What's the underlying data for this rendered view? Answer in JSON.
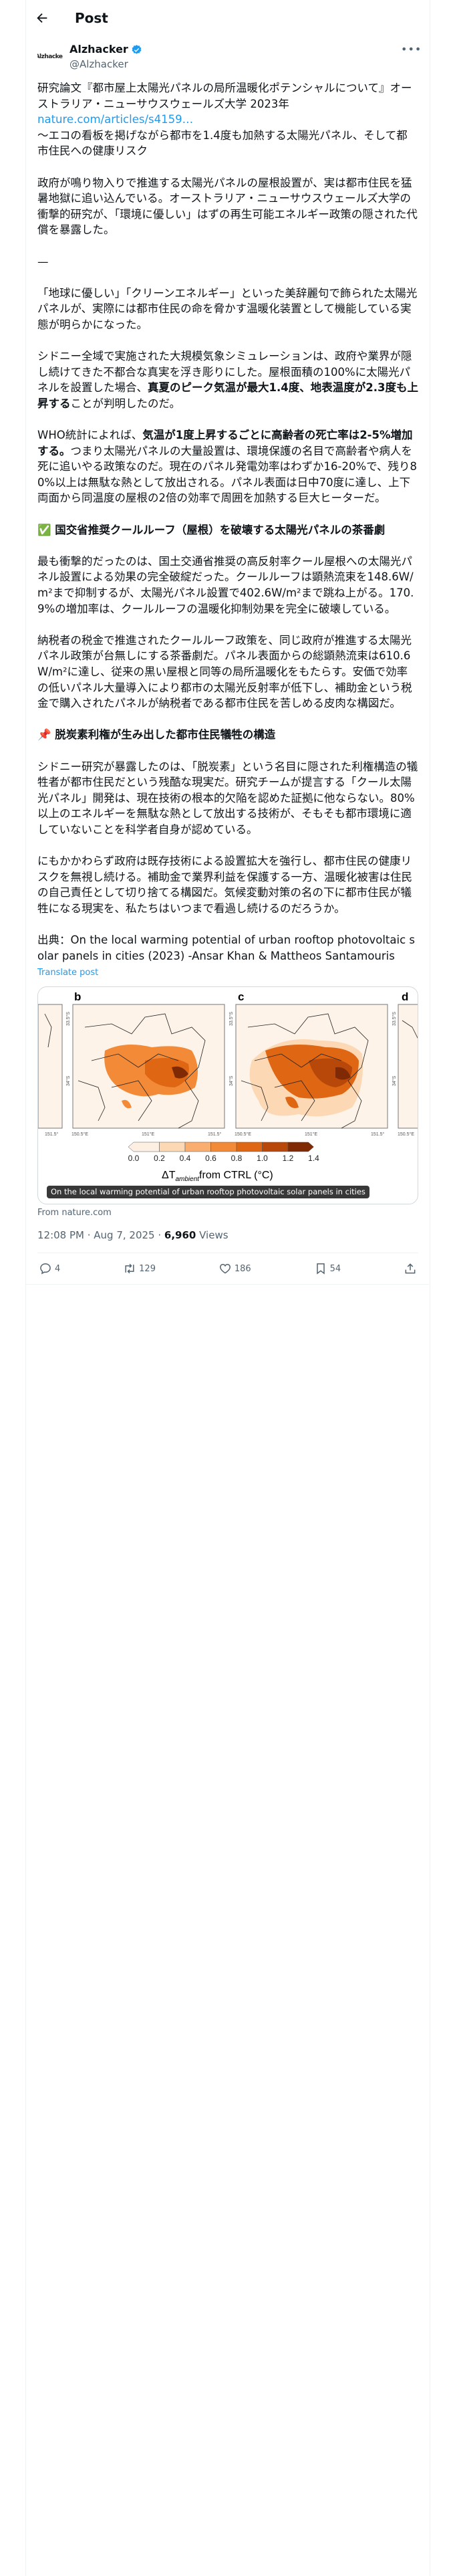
{
  "header": {
    "title": "Post"
  },
  "author": {
    "avatar_text": "Alzhacker",
    "name": "Alzhacker",
    "handle": "@Alzhacker",
    "verified_color": "#1d9bf0"
  },
  "post": {
    "p1": "研究論文『都市屋上太陽光パネルの局所温暖化ポテンシャルについて』オーストラリア・ニューサウスウェールズ大学 2023年",
    "link": "nature.com/articles/s4159…",
    "p1b": "～エコの看板を掲げながら都市を1.4度も加熱する太陽光パネル、そして都市住民への健康リスク",
    "p2": "政府が鳴り物入りで推進する太陽光パネルの屋根設置が、実は都市住民を猛暑地獄に追い込んでいる。オーストラリア・ニューサウスウェールズ大学の衝撃的研究が、「環境に優しい」はずの再生可能エネルギー政策の隠された代償を暴露した。",
    "p3": "—",
    "p4": "「地球に優しい」「クリーンエネルギー」といった美辞麗句で飾られた太陽光パネルが、実際には都市住民の命を脅かす温暖化装置として機能している実態が明らかになった。",
    "p5": [
      "シドニー全域で実施された大規模気象シミュレーションは、政府や業界が隠し続けてきた不都合な真実を浮き彫りにした。屋根面積の100%に太陽光パネルを設置した場合、",
      "真夏のピーク気温が最大1.4度、地表温度が2.3度も上昇する",
      "ことが判明したのだ。"
    ],
    "p6": [
      "WHO統計によれば、",
      "気温が1度上昇するごとに高齢者の死亡率は2-5%増加する。",
      "つまり太陽光パネルの大量設置は、環境保護の名目で高齢者や病人を死に追いやる政策なのだ。現在のパネル発電効率はわずか16-20%で、残り80%以上は無駄な熱として放出される。パネル表面は日中70度に達し、上下両面から同温度の屋根の2倍の効率で周囲を加熱する巨大ヒーターだ。"
    ],
    "h1": {
      "emoji": "✅",
      "text": "国交省推奨クールルーフ（屋根）を破壊する太陽光パネルの茶番劇"
    },
    "p7": "最も衝撃的だったのは、国土交通省推奨の高反射率クール屋根への太陽光パネル設置による効果の完全破綻だった。クールルーフは顕熱流束を148.6W/m²まで抑制するが、太陽光パネル設置で402.6W/m²まで跳ね上がる。170.9%の増加率は、クールルーフの温暖化抑制効果を完全に破壊している。",
    "p8": "納税者の税金で推進されたクールルーフ政策を、同じ政府が推進する太陽光パネル政策が台無しにする茶番劇だ。パネル表面からの総顕熱流束は610.6W/m²に達し、従来の黒い屋根と同等の局所温暖化をもたらす。安価で効率の低いパネル大量導入により都市の太陽光反射率が低下し、補助金という税金で購入されたパネルが納税者である都市住民を苦しめる皮肉な構図だ。",
    "h2": {
      "emoji": "📌",
      "text": "脱炭素利権が生み出した都市住民犠牲の構造"
    },
    "p9": "シドニー研究が暴露したのは、「脱炭素」という名目に隠された利権構造の犠牲者が都市住民だという残酷な現実だ。研究チームが提言する「クール太陽光パネル」開発は、現在技術の根本的欠陥を認めた証拠に他ならない。80%以上のエネルギーを無駄な熱として放出する技術が、そもそも都市環境に適していないことを科学者自身が認めている。",
    "p10": "にもかかわらず政府は既存技術による設置拡大を強行し、都市住民の健康リスクを無視し続ける。補助金で業界利益を保護する一方、温暖化被害は住民の自己責任として切り捨てる構図だ。気候変動対策の名の下に都市住民が犠牲になる現実を、私たちはいつまで看過し続けるのだろうか。",
    "p11": "出典：On the local warming potential of urban rooftop photovoltaic solar panels in cities (2023) -Ansar Khan & Mattheos Santamouris",
    "translate": "Translate post"
  },
  "card": {
    "panel_labels": [
      "b",
      "c",
      "d"
    ],
    "lat_labels": [
      "33.5°S",
      "34°S"
    ],
    "lon_labels": [
      "150.5°E",
      "151°E",
      "151.5°"
    ],
    "colorbar_ticks": [
      "0.0",
      "0.2",
      "0.4",
      "0.6",
      "0.8",
      "1.0",
      "1.2",
      "1.4"
    ],
    "colorbar_colors": [
      "#fdf0e2",
      "#fcd8b4",
      "#f9ad6e",
      "#f38a38",
      "#df6613",
      "#b8480a",
      "#7f2a05"
    ],
    "colorbar_label": "ΔT",
    "colorbar_label_sub": "ambient",
    "colorbar_label_rest": "from CTRL (°C)",
    "tooltip": "On the local warming potential of urban rooftop photovoltaic solar panels in cities",
    "source": "From nature.com"
  },
  "meta": {
    "time": "12:08 PM · Aug 7, 2025 · ",
    "views": "6,960",
    "views_label": " Views"
  },
  "actions": {
    "replies": "4",
    "reposts": "129",
    "likes": "186",
    "bookmarks": "54"
  }
}
